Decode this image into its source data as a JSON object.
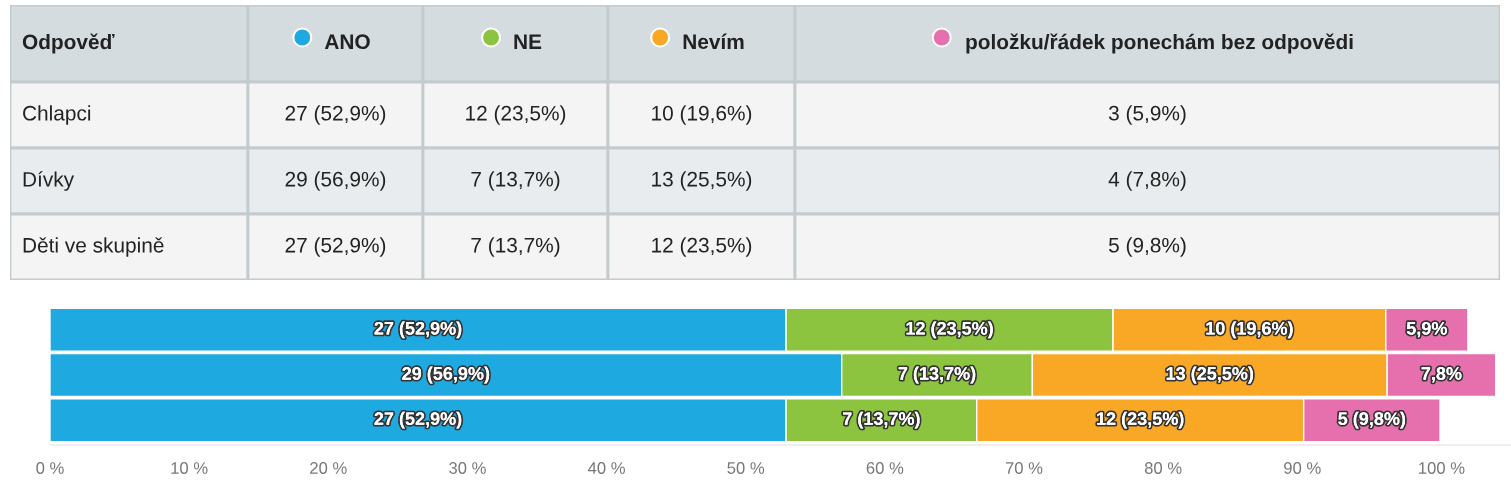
{
  "chart_data": {
    "type": "bar",
    "orientation": "horizontal",
    "stacked": true,
    "categories": [
      null,
      null,
      null
    ],
    "series": [
      {
        "name": "ANO",
        "color": "#1fa9e1",
        "values": [
          52.9,
          56.9,
          52.9
        ],
        "value_labels": [
          "27 (52,9%)",
          "29 (56,9%)",
          "27 (52,9%)"
        ]
      },
      {
        "name": "NE",
        "color": "#8cc43f",
        "values": [
          23.5,
          13.7,
          13.7
        ],
        "value_labels": [
          "12 (23,5%)",
          "7 (13,7%)",
          "7 (13,7%)"
        ]
      },
      {
        "name": "Nevím",
        "color": "#f9a825",
        "values": [
          19.6,
          25.5,
          23.5
        ],
        "value_labels": [
          "10 (19,6%)",
          "13 (25,5%)",
          "12 (23,5%)"
        ]
      },
      {
        "name": "položku/řádek ponechám bez odpovědi",
        "color": "#e66fad",
        "values": [
          5.9,
          7.8,
          9.8
        ],
        "value_labels": [
          "5,9%",
          "7,8%",
          "5 (9,8%)"
        ]
      }
    ],
    "xlim": [
      0,
      105
    ],
    "xticks": [
      {
        "value": 0,
        "label": "0 %"
      },
      {
        "value": 10,
        "label": "10 %"
      },
      {
        "value": 20,
        "label": "20 %"
      },
      {
        "value": 30,
        "label": "30 %"
      },
      {
        "value": 40,
        "label": "40 %"
      },
      {
        "value": 50,
        "label": "50 %"
      },
      {
        "value": 60,
        "label": "60 %"
      },
      {
        "value": 70,
        "label": "70 %"
      },
      {
        "value": 80,
        "label": "80 %"
      },
      {
        "value": 90,
        "label": "90 %"
      },
      {
        "value": 100,
        "label": "100 %"
      }
    ],
    "annotations": [
      "Odpověď",
      "Chlapci",
      "Dívky",
      "Děti ve skupině",
      "3 (5,9%)",
      "4 (7,8%)"
    ],
    "grid": false,
    "legend": "top",
    "tick_labels": "x"
  }
}
